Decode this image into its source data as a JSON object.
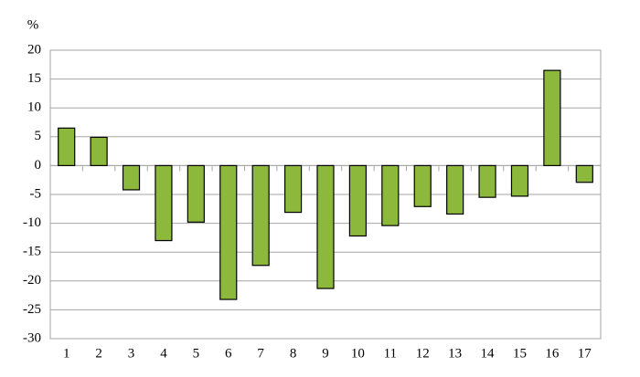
{
  "chart_data": {
    "type": "bar",
    "y_label": "%",
    "categories": [
      "1",
      "2",
      "3",
      "4",
      "5",
      "6",
      "7",
      "8",
      "9",
      "10",
      "11",
      "12",
      "13",
      "14",
      "15",
      "16",
      "17"
    ],
    "values": [
      6.5,
      4.9,
      -4.2,
      -13,
      -9.8,
      -23.2,
      -17.3,
      -8.1,
      -21.3,
      -12.2,
      -10.4,
      -7.1,
      -8.4,
      -5.5,
      -5.3,
      16.5,
      -2.9
    ],
    "color": "#8cb83c",
    "ylim": [
      -30,
      20
    ],
    "yticks": [
      -30,
      -25,
      -20,
      -15,
      -10,
      -5,
      0,
      5,
      10,
      15,
      20
    ],
    "grid": true
  }
}
